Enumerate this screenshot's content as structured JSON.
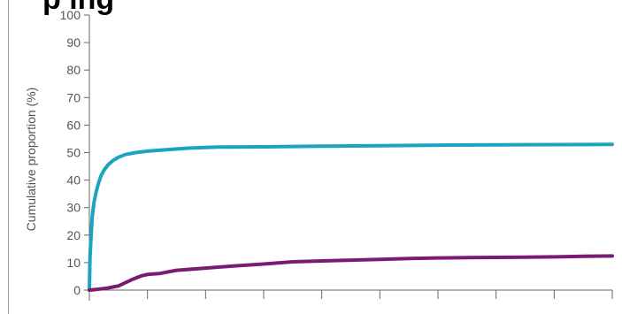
{
  "header": {
    "cut_title": "p ing"
  },
  "chart_data": {
    "type": "line",
    "ylabel": "Cumulative proportion (%)",
    "xlabel": "",
    "ylim": [
      0,
      100
    ],
    "yticks": [
      "0",
      "10",
      "20",
      "30",
      "40",
      "50",
      "60",
      "70",
      "80",
      "90",
      "100"
    ],
    "xlim": [
      0,
      9
    ],
    "x_tick_count": 10,
    "x_ticks_labelled": false,
    "grid": false,
    "series": [
      {
        "color": "#1ba3bf",
        "points": [
          [
            0,
            0
          ],
          [
            0.01,
            12
          ],
          [
            0.03,
            20
          ],
          [
            0.05,
            27
          ],
          [
            0.08,
            32
          ],
          [
            0.12,
            36
          ],
          [
            0.16,
            39
          ],
          [
            0.2,
            41.5
          ],
          [
            0.25,
            43.5
          ],
          [
            0.32,
            45.5
          ],
          [
            0.4,
            47
          ],
          [
            0.5,
            48.3
          ],
          [
            0.62,
            49.3
          ],
          [
            0.8,
            50
          ],
          [
            1.0,
            50.5
          ],
          [
            1.3,
            51
          ],
          [
            1.7,
            51.6
          ],
          [
            2.2,
            52
          ],
          [
            3.0,
            52.1
          ],
          [
            4.0,
            52.3
          ],
          [
            5.0,
            52.5
          ],
          [
            6.0,
            52.7
          ],
          [
            7.0,
            52.8
          ],
          [
            8.0,
            52.9
          ],
          [
            9.0,
            53
          ]
        ]
      },
      {
        "color": "#7b1a73",
        "points": [
          [
            0,
            0
          ],
          [
            0.1,
            0.2
          ],
          [
            0.3,
            0.7
          ],
          [
            0.5,
            1.5
          ],
          [
            0.6,
            2.5
          ],
          [
            0.75,
            4
          ],
          [
            0.9,
            5.2
          ],
          [
            1.0,
            5.7
          ],
          [
            1.2,
            6
          ],
          [
            1.5,
            7.2
          ],
          [
            2.0,
            8
          ],
          [
            2.5,
            8.8
          ],
          [
            3.0,
            9.5
          ],
          [
            3.5,
            10.3
          ],
          [
            4.0,
            10.6
          ],
          [
            4.5,
            10.9
          ],
          [
            5.0,
            11.2
          ],
          [
            5.5,
            11.5
          ],
          [
            6.0,
            11.7
          ],
          [
            6.5,
            11.8
          ],
          [
            7.0,
            11.9
          ],
          [
            7.5,
            12.0
          ],
          [
            8.0,
            12.1
          ],
          [
            8.5,
            12.3
          ],
          [
            9.0,
            12.4
          ]
        ]
      }
    ]
  }
}
